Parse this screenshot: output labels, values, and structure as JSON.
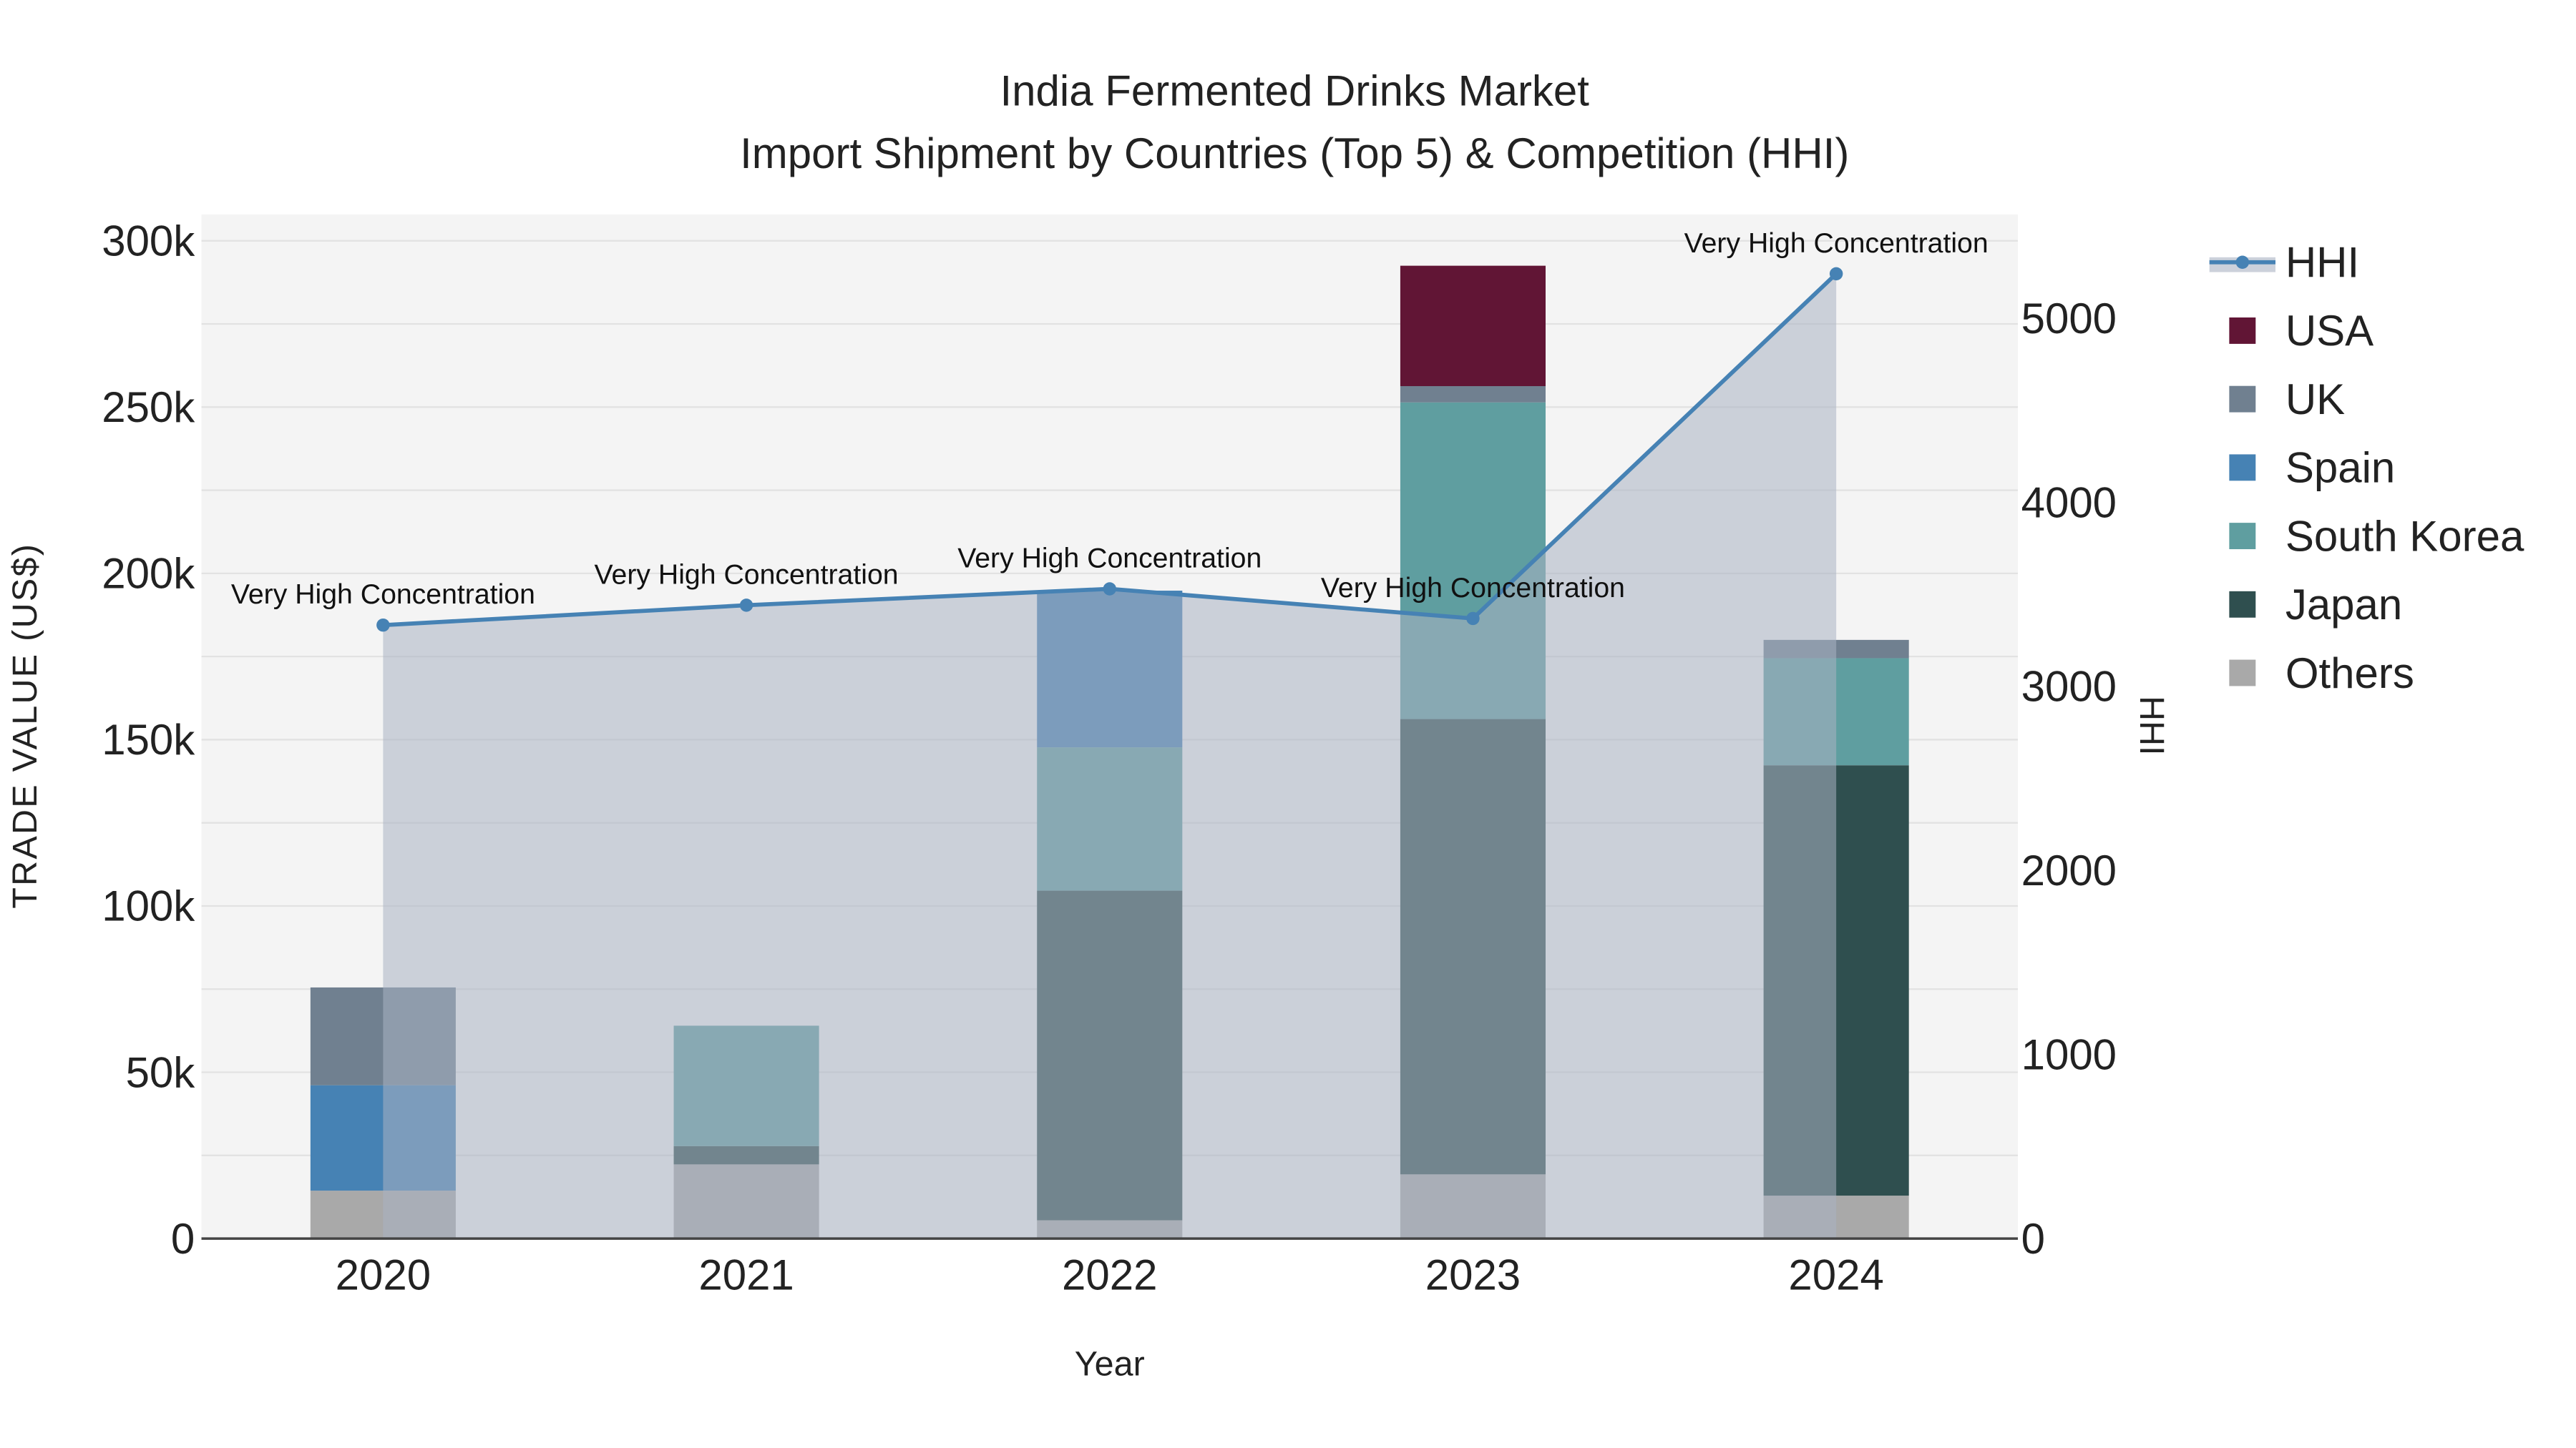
{
  "chart_data": {
    "type": "bar",
    "title": "India Fermented Drinks Market",
    "subtitle": "Import Shipment by Countries (Top 5) & Competition (HHI)",
    "xlabel": "Year",
    "ylabel": "TRADE VALUE (US$)",
    "y2label": "HHI",
    "categories": [
      "2020",
      "2021",
      "2022",
      "2023",
      "2024"
    ],
    "ylim": [
      0,
      300000
    ],
    "y_ticks": [
      0,
      50000,
      100000,
      150000,
      200000,
      250000,
      300000
    ],
    "y_tick_labels": [
      "0",
      "50k",
      "100k",
      "150k",
      "200k",
      "250k",
      "300k"
    ],
    "y2lim": [
      0,
      5400
    ],
    "y2_ticks": [
      0,
      1000,
      2000,
      3000,
      4000,
      5000
    ],
    "y2_tick_labels": [
      "0",
      "1000",
      "2000",
      "3000",
      "4000",
      "5000"
    ],
    "stacked": true,
    "series": [
      {
        "name": "Others",
        "color": "#a9a9a9",
        "values": [
          14400,
          22300,
          5500,
          19300,
          12900
        ]
      },
      {
        "name": "Japan",
        "color": "#2f4f4f",
        "values": [
          0,
          5500,
          99100,
          136900,
          129400
        ]
      },
      {
        "name": "South Korea",
        "color": "#5f9ea0",
        "values": [
          0,
          36200,
          43100,
          95200,
          32200
        ]
      },
      {
        "name": "Spain",
        "color": "#4682b4",
        "values": [
          31700,
          0,
          47100,
          0,
          0
        ]
      },
      {
        "name": "UK",
        "color": "#708090",
        "values": [
          29400,
          0,
          0,
          4900,
          5500
        ]
      },
      {
        "name": "USA",
        "color": "#611535",
        "values": [
          0,
          0,
          0,
          36200,
          0
        ]
      }
    ],
    "line": {
      "name": "HHI",
      "color": "#4682b4",
      "values": [
        3333,
        3441,
        3530,
        3369,
        5242
      ],
      "annotations": [
        "Very High Concentration",
        "Very High Concentration",
        "Very High Concentration",
        "Very High Concentration",
        "Very High Concentration"
      ]
    },
    "legend": [
      "HHI",
      "USA",
      "UK",
      "Spain",
      "South Korea",
      "Japan",
      "Others"
    ],
    "legend_placement": "right",
    "grid": true
  }
}
